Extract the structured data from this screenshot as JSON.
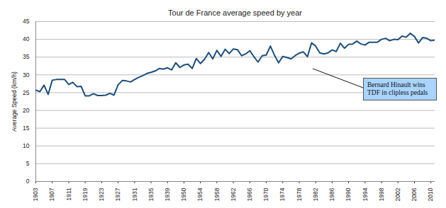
{
  "chart_data": {
    "type": "line",
    "title": "Tour de France average speed by year",
    "y_label": "Average Speed (km/h)",
    "annotation": "Bernard Hinault wins TDF in clipless pedals",
    "color": "#1f4e79",
    "grid": true,
    "ylim": [
      0,
      45
    ],
    "yticks": [
      0,
      5,
      10,
      15,
      20,
      25,
      30,
      35,
      40,
      45
    ],
    "categories": [
      "1903",
      null,
      null,
      null,
      "1907",
      null,
      null,
      null,
      "1911",
      null,
      null,
      null,
      "1919",
      null,
      null,
      null,
      "1923",
      null,
      null,
      null,
      "1927",
      null,
      null,
      null,
      "1931",
      null,
      null,
      null,
      "1935",
      null,
      null,
      null,
      "1939",
      null,
      null,
      null,
      "1950",
      null,
      null,
      null,
      "1954",
      null,
      null,
      null,
      "1958",
      null,
      null,
      null,
      "1962",
      null,
      null,
      null,
      "1966",
      null,
      null,
      null,
      "1970",
      null,
      null,
      null,
      "1974",
      null,
      null,
      null,
      "1978",
      null,
      null,
      null,
      "1982",
      null,
      null,
      null,
      "1986",
      null,
      null,
      null,
      "1990",
      null,
      null,
      null,
      "1994",
      null,
      null,
      null,
      "1998",
      null,
      null,
      null,
      "2002",
      null,
      null,
      null,
      "2006",
      null,
      null,
      null,
      "2010",
      null
    ],
    "values": [
      25.7,
      25.3,
      27.1,
      24.5,
      28.5,
      28.7,
      28.7,
      28.7,
      27.3,
      27.9,
      26.7,
      26.8,
      24.1,
      24.1,
      24.7,
      24.2,
      24.2,
      24.3,
      24.8,
      24.3,
      27.2,
      28.4,
      28.3,
      28.0,
      28.7,
      29.3,
      29.8,
      30.4,
      30.7,
      31.1,
      31.8,
      31.6,
      32.0,
      31.4,
      33.4,
      32.1,
      32.8,
      33.0,
      31.8,
      34.6,
      33.2,
      34.4,
      36.3,
      34.5,
      36.9,
      35.2,
      37.2,
      36.0,
      37.3,
      37.1,
      35.4,
      35.9,
      36.8,
      35.1,
      33.6,
      35.4,
      35.6,
      38.1,
      35.5,
      33.4,
      35.2,
      34.9,
      34.5,
      35.4,
      36.1,
      36.5,
      35.1,
      39.0,
      38.1,
      36.2,
      35.9,
      36.2,
      37.0,
      36.6,
      38.9,
      37.5,
      38.6,
      38.7,
      39.5,
      38.7,
      38.4,
      39.2,
      39.2,
      39.2,
      40.0,
      40.3,
      39.6,
      40.0,
      39.9,
      40.9,
      40.6,
      41.7,
      40.8,
      39.0,
      40.5,
      40.3,
      39.6,
      39.8
    ]
  }
}
